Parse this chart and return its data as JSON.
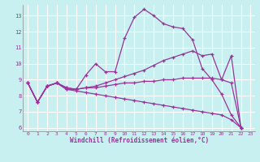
{
  "xlabel": "Windchill (Refroidissement éolien,°C)",
  "background_color": "#c8f0f0",
  "line_color": "#993399",
  "grid_color": "#ffffff",
  "xlim": [
    -0.5,
    23.5
  ],
  "ylim": [
    5.8,
    13.7
  ],
  "yticks": [
    6,
    7,
    8,
    9,
    10,
    11,
    12,
    13
  ],
  "xticks": [
    0,
    1,
    2,
    3,
    4,
    5,
    6,
    7,
    8,
    9,
    10,
    11,
    12,
    13,
    14,
    15,
    16,
    17,
    18,
    19,
    20,
    21,
    22,
    23
  ],
  "series": [
    [
      8.8,
      7.6,
      8.6,
      8.8,
      8.5,
      8.4,
      9.3,
      10.0,
      9.5,
      9.5,
      11.6,
      12.9,
      13.4,
      13.0,
      12.5,
      12.3,
      12.2,
      11.5,
      9.7,
      9.0,
      8.1,
      6.8,
      6.0
    ],
    [
      8.8,
      7.6,
      8.6,
      8.8,
      8.5,
      8.4,
      8.5,
      8.6,
      8.8,
      9.0,
      9.2,
      9.4,
      9.6,
      9.9,
      10.2,
      10.4,
      10.6,
      10.8,
      10.5,
      10.6,
      9.0,
      10.5,
      6.0
    ],
    [
      8.8,
      7.6,
      8.6,
      8.8,
      8.4,
      8.4,
      8.5,
      8.5,
      8.6,
      8.7,
      8.8,
      8.8,
      8.9,
      8.9,
      9.0,
      9.0,
      9.1,
      9.1,
      9.1,
      9.1,
      9.0,
      8.8,
      6.0
    ],
    [
      8.8,
      7.6,
      8.6,
      8.8,
      8.4,
      8.3,
      8.2,
      8.1,
      8.0,
      7.9,
      7.8,
      7.7,
      7.6,
      7.5,
      7.4,
      7.3,
      7.2,
      7.1,
      7.0,
      6.9,
      6.8,
      6.5,
      6.0
    ]
  ],
  "x_values": [
    0,
    1,
    2,
    3,
    4,
    5,
    6,
    7,
    8,
    9,
    10,
    11,
    12,
    13,
    14,
    15,
    16,
    17,
    18,
    19,
    20,
    21,
    22
  ]
}
